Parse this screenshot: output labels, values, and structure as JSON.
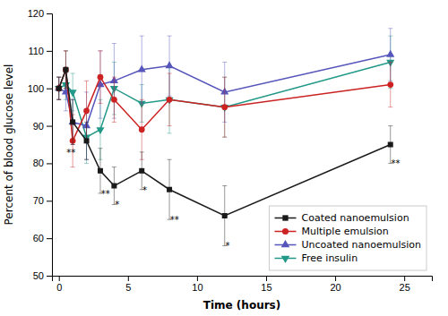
{
  "chart_data": {
    "type": "line",
    "xlabel": "Time (hours)",
    "ylabel": "Percent of blood glucose level",
    "x": [
      0,
      0.5,
      1,
      2,
      3,
      4,
      6,
      8,
      12,
      24
    ],
    "series": [
      {
        "name": "Coated nanoemulsion",
        "color": "#1a1a1a",
        "marker": "square",
        "values": [
          100,
          105,
          91,
          86,
          78,
          74,
          78,
          73,
          66,
          85
        ],
        "errors": [
          3,
          5,
          6,
          5,
          6,
          5,
          5,
          8,
          8,
          5
        ]
      },
      {
        "name": "Multiple emulsion",
        "color": "#cc2222",
        "marker": "circle",
        "values": [
          100,
          105,
          86,
          94,
          103,
          97,
          89,
          97,
          95,
          101
        ],
        "errors": [
          3,
          5,
          7,
          8,
          7,
          6,
          8,
          7,
          8,
          6
        ]
      },
      {
        "name": "Uncoated nanoemulsion",
        "color": "#5555bb",
        "marker": "triangle-up",
        "values": [
          100,
          99,
          91,
          90,
          101,
          102,
          105,
          106,
          99,
          109
        ],
        "errors": [
          3,
          5,
          6,
          9,
          9,
          10,
          9,
          8,
          8,
          7
        ]
      },
      {
        "name": "Free insulin",
        "color": "#229988",
        "marker": "triangle-down",
        "values": [
          100,
          101,
          99,
          87,
          89,
          100,
          96,
          97,
          95,
          107
        ],
        "errors": [
          3,
          4,
          5,
          7,
          8,
          7,
          5,
          9,
          8,
          7
        ]
      }
    ],
    "annotations": [
      {
        "x": 0.55,
        "y": 84,
        "text": "**"
      },
      {
        "x": 3.05,
        "y": 73,
        "text": "**"
      },
      {
        "x": 4.05,
        "y": 70,
        "text": "*"
      },
      {
        "x": 6.05,
        "y": 74,
        "text": "*"
      },
      {
        "x": 8.05,
        "y": 66,
        "text": "**"
      },
      {
        "x": 12.05,
        "y": 59,
        "text": "*"
      },
      {
        "x": 24.05,
        "y": 81,
        "text": "**"
      }
    ],
    "xlim": [
      -0.5,
      27
    ],
    "ylim": [
      50,
      120
    ],
    "xticks": [
      0,
      5,
      10,
      15,
      20,
      25
    ],
    "yticks": [
      50,
      60,
      70,
      80,
      90,
      100,
      110,
      120
    ],
    "legend": "lower right",
    "grid": false
  }
}
